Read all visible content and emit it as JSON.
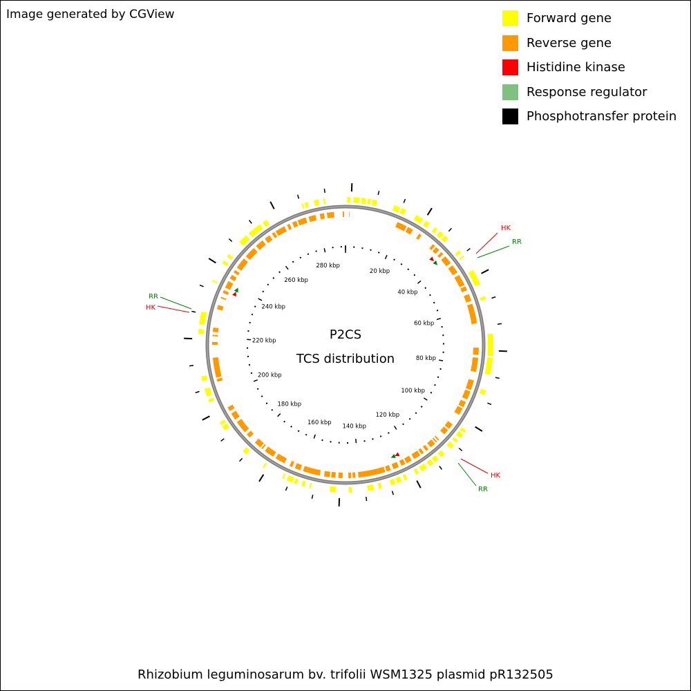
{
  "credit": "Image generated by CGView",
  "legend": [
    {
      "label": "Forward gene",
      "color": "#ffff00"
    },
    {
      "label": "Reverse gene",
      "color": "#ff9900"
    },
    {
      "label": "Histidine kinase",
      "color": "#ff0000"
    },
    {
      "label": "Response regulator",
      "color": "#80c080"
    },
    {
      "label": "Phosphotransfer protein",
      "color": "#000000"
    }
  ],
  "center": {
    "title": "P2CS",
    "subtitle": "TCS distribution"
  },
  "footer": "Rhizobium leguminosarum bv. trifolii WSM1325 plasmid pR132505",
  "chart_data": {
    "type": "circular_genome_map",
    "genome_length_kbp": 290,
    "ticks_kbp": [
      20,
      40,
      60,
      80,
      100,
      120,
      140,
      160,
      180,
      200,
      220,
      240,
      260,
      280
    ],
    "tick_unit": "kbp",
    "tcs_features": [
      {
        "label": "HK",
        "type": "histidine_kinase",
        "strand": "forward",
        "position_kbp": 36.5,
        "color": "#dd0000"
      },
      {
        "label": "RR",
        "type": "response_regulator",
        "strand": "forward",
        "position_kbp": 38.5,
        "color": "#008000"
      },
      {
        "label": "HK",
        "type": "histidine_kinase",
        "strand": "forward",
        "position_kbp": 124.7,
        "color": "#dd0000"
      },
      {
        "label": "RR",
        "type": "response_regulator",
        "strand": "forward",
        "position_kbp": 126.3,
        "color": "#008000"
      },
      {
        "label": "HK",
        "type": "histidine_kinase",
        "strand": "forward",
        "position_kbp": 237.3,
        "color": "#dd0000"
      },
      {
        "label": "RR",
        "type": "response_regulator",
        "strand": "forward",
        "position_kbp": 239.0,
        "color": "#008000"
      }
    ],
    "forward_genes_kbp": [
      [
        0.5,
        1.5
      ],
      [
        2.5,
        4.5
      ],
      [
        5.0,
        6.5
      ],
      [
        7.0,
        8.0
      ],
      [
        8.5,
        10.0
      ],
      [
        15.5,
        17.5
      ],
      [
        18.0,
        19.5
      ],
      [
        23.0,
        25.5
      ],
      [
        26.5,
        28.0
      ],
      [
        30.0,
        31.0
      ],
      [
        32.0,
        33.5
      ],
      [
        34.0,
        35.5
      ],
      [
        40.5,
        41.5
      ],
      [
        42.5,
        43.0
      ],
      [
        48.0,
        53.0
      ],
      [
        57.0,
        58.0
      ],
      [
        69.0,
        76.0
      ],
      [
        76.5,
        82.0
      ],
      [
        87.0,
        88.5
      ],
      [
        101.0,
        102.0
      ],
      [
        102.5,
        104.0
      ],
      [
        105.0,
        106.0
      ],
      [
        107.0,
        108.5
      ],
      [
        111.0,
        112.5
      ],
      [
        113.5,
        115.0
      ],
      [
        115.5,
        117.0
      ],
      [
        118.0,
        120.0
      ],
      [
        121.0,
        122.0
      ],
      [
        125.0,
        126.0
      ],
      [
        127.0,
        128.5
      ],
      [
        129.0,
        130.5
      ],
      [
        133.5,
        134.5
      ],
      [
        136.0,
        138.0
      ],
      [
        143.0,
        144.0
      ],
      [
        148.0,
        150.0
      ],
      [
        156.0,
        156.5
      ],
      [
        158.0,
        159.0
      ],
      [
        160.5,
        161.5
      ],
      [
        162.0,
        164.0
      ],
      [
        165.0,
        165.5
      ],
      [
        172.0,
        172.5
      ],
      [
        179.0,
        180.5
      ],
      [
        189.0,
        190.5
      ],
      [
        191.0,
        192.0
      ],
      [
        199.0,
        200.0
      ],
      [
        201.0,
        203.5
      ],
      [
        206.0,
        207.5
      ],
      [
        221.0,
        222.5
      ],
      [
        224.0,
        228.0
      ],
      [
        238.0,
        238.5
      ],
      [
        244.5,
        245.5
      ],
      [
        247.0,
        248.0
      ],
      [
        253.0,
        256.0
      ],
      [
        257.0,
        261.5
      ],
      [
        262.5,
        264.0
      ],
      [
        276.0,
        276.5
      ],
      [
        277.0,
        278.0
      ],
      [
        280.0,
        281.5
      ],
      [
        283.0,
        283.5
      ]
    ],
    "reverse_genes_kbp": [
      [
        1.3,
        1.5
      ],
      [
        18.5,
        22.0
      ],
      [
        22.5,
        24.5
      ],
      [
        27.0,
        28.0
      ],
      [
        33.0,
        34.0
      ],
      [
        34.5,
        36.0
      ],
      [
        37.0,
        38.0
      ],
      [
        39.0,
        42.0
      ],
      [
        43.0,
        46.0
      ],
      [
        47.0,
        51.0
      ],
      [
        51.5,
        53.0
      ],
      [
        54.5,
        57.0
      ],
      [
        58.0,
        65.0
      ],
      [
        73.5,
        76.0
      ],
      [
        77.0,
        82.0
      ],
      [
        85.0,
        88.5
      ],
      [
        89.0,
        92.0
      ],
      [
        93.0,
        95.0
      ],
      [
        95.5,
        98.0
      ],
      [
        102.0,
        104.0
      ],
      [
        104.5,
        106.5
      ],
      [
        109.0,
        109.5
      ],
      [
        110.0,
        110.5
      ],
      [
        111.0,
        113.0
      ],
      [
        114.0,
        115.0
      ],
      [
        116.0,
        117.0
      ],
      [
        117.5,
        120.0
      ],
      [
        121.0,
        123.0
      ],
      [
        123.5,
        125.0
      ],
      [
        126.0,
        128.0
      ],
      [
        129.0,
        130.5
      ],
      [
        131.0,
        140.5
      ],
      [
        141.5,
        142.5
      ],
      [
        143.0,
        144.0
      ],
      [
        146.0,
        147.5
      ],
      [
        148.5,
        150.0
      ],
      [
        150.5,
        152.5
      ],
      [
        154.0,
        160.0
      ],
      [
        161.0,
        163.0
      ],
      [
        164.0,
        165.0
      ],
      [
        167.0,
        170.5
      ],
      [
        171.5,
        175.0
      ],
      [
        176.0,
        176.5
      ],
      [
        177.0,
        179.5
      ],
      [
        182.0,
        183.5
      ],
      [
        184.5,
        189.0
      ],
      [
        190.0,
        192.5
      ],
      [
        193.5,
        195.0
      ],
      [
        204.5,
        205.5
      ],
      [
        206.0,
        213.0
      ],
      [
        217.5,
        218.5
      ],
      [
        220.5,
        221.0
      ],
      [
        222.0,
        223.5
      ],
      [
        230.0,
        231.5
      ],
      [
        234.0,
        234.5
      ],
      [
        236.0,
        237.0
      ],
      [
        238.0,
        240.5
      ],
      [
        241.5,
        243.0
      ],
      [
        244.0,
        245.0
      ],
      [
        246.0,
        250.0
      ],
      [
        251.0,
        255.0
      ],
      [
        256.0,
        259.0
      ],
      [
        260.0,
        262.0
      ],
      [
        263.0,
        264.0
      ],
      [
        264.5,
        268.0
      ],
      [
        269.0,
        270.0
      ],
      [
        271.0,
        272.5
      ],
      [
        273.0,
        276.0
      ],
      [
        277.0,
        279.5
      ],
      [
        281.0,
        282.5
      ],
      [
        283.5,
        286.0
      ],
      [
        289.0,
        289.5
      ]
    ]
  },
  "style": {
    "backbone_color": "#808080",
    "outer_tick_color": "#000000",
    "label_hk_color": "#dd0000",
    "label_rr_color": "#008000"
  }
}
